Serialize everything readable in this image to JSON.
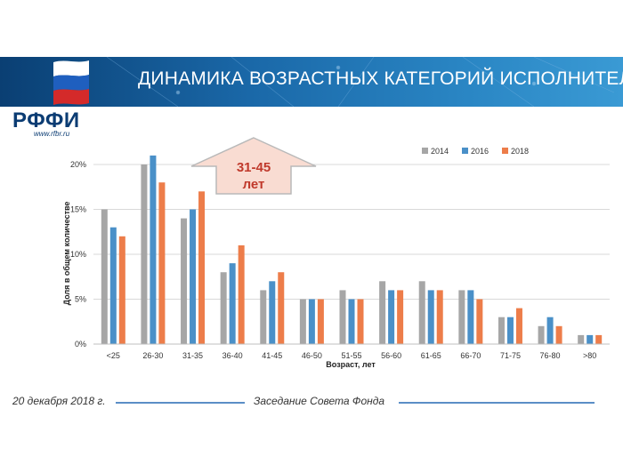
{
  "slide": {
    "title": "ДИНАМИКА ВОЗРАСТНЫХ КАТЕГОРИЙ ИСПОЛНИТЕЛЕЙ",
    "logo_text": "РФФИ",
    "logo_url": "www.rfbr.ru",
    "footer_date": "20 декабря 2018 г.",
    "footer_event": "Заседание Совета Фонда",
    "callout_line1": "31-45",
    "callout_line2": "лет"
  },
  "chart_data": {
    "type": "bar",
    "xlabel": "Возраст, лет",
    "ylabel": "Доля в общем количестве",
    "ylim": [
      0,
      20
    ],
    "yticks": [
      "0%",
      "5%",
      "10%",
      "15%",
      "20%"
    ],
    "legend_position": "top-right",
    "grid": true,
    "categories": [
      "<25",
      "26-30",
      "31-35",
      "36-40",
      "41-45",
      "46-50",
      "51-55",
      "56-60",
      "61-65",
      "66-70",
      "71-75",
      "76-80",
      ">80"
    ],
    "series": [
      {
        "name": "2014",
        "color": "#a6a6a6",
        "values": [
          15,
          20,
          14,
          8,
          6,
          5,
          6,
          7,
          7,
          6,
          3,
          2,
          1
        ]
      },
      {
        "name": "2016",
        "color": "#4a90c8",
        "values": [
          13,
          21,
          15,
          9,
          7,
          5,
          5,
          6,
          6,
          6,
          3,
          3,
          1
        ]
      },
      {
        "name": "2018",
        "color": "#ed7d4a",
        "values": [
          12,
          18,
          17,
          11,
          8,
          5,
          5,
          6,
          6,
          5,
          4,
          2,
          1
        ]
      }
    ]
  }
}
